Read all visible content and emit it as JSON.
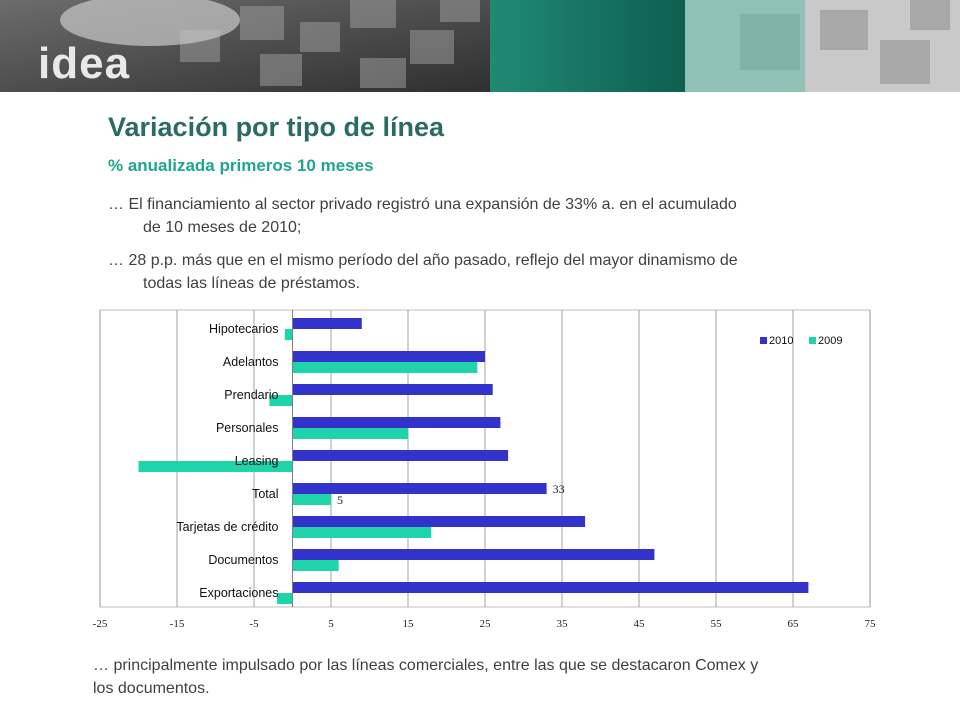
{
  "header": {
    "logo_text": "idea"
  },
  "slide": {
    "title": "Variación por tipo de línea",
    "subtitle": "% anualizada primeros 10 meses",
    "para1": [
      "… El financiamiento al sector privado registró una expansión de 33% a. en el acumulado",
      "de 10 meses de 2010;"
    ],
    "para2": [
      "… 28 p.p. más que en el mismo período del año pasado, reflejo del mayor dinamismo de",
      "todas las líneas de préstamos."
    ],
    "para3": [
      "… principalmente impulsado por las líneas comerciales, entre las que se destacaron Comex y",
      "los documentos."
    ]
  },
  "colors": {
    "series_2010": "#3333cc",
    "series_2009": "#1fd3aa",
    "title": "#2a6b66",
    "subtitle": "#21a58b"
  },
  "chart_data": {
    "type": "bar",
    "orientation": "horizontal",
    "categories": [
      "Hipotecarios",
      "Adelantos",
      "Prendario",
      "Personales",
      "Leasing",
      "Total",
      "Tarjetas de crédito",
      "Documentos",
      "Exportaciones"
    ],
    "series": [
      {
        "name": "2010",
        "values": [
          9,
          25,
          26,
          27,
          28,
          33,
          38,
          47,
          67
        ]
      },
      {
        "name": "2009",
        "values": [
          -1,
          24,
          -3,
          15,
          -20,
          5,
          18,
          6,
          -2
        ]
      }
    ],
    "data_labels": [
      {
        "series": "2010",
        "category": "Total",
        "text": "33"
      },
      {
        "series": "2009",
        "category": "Total",
        "text": "5"
      }
    ],
    "xlim": [
      -25,
      75
    ],
    "xticks": [
      "-25",
      "-15",
      "-5",
      "5",
      "15",
      "25",
      "35",
      "45",
      "55",
      "65",
      "75"
    ],
    "grid": "vertical",
    "legend": "top-right"
  }
}
